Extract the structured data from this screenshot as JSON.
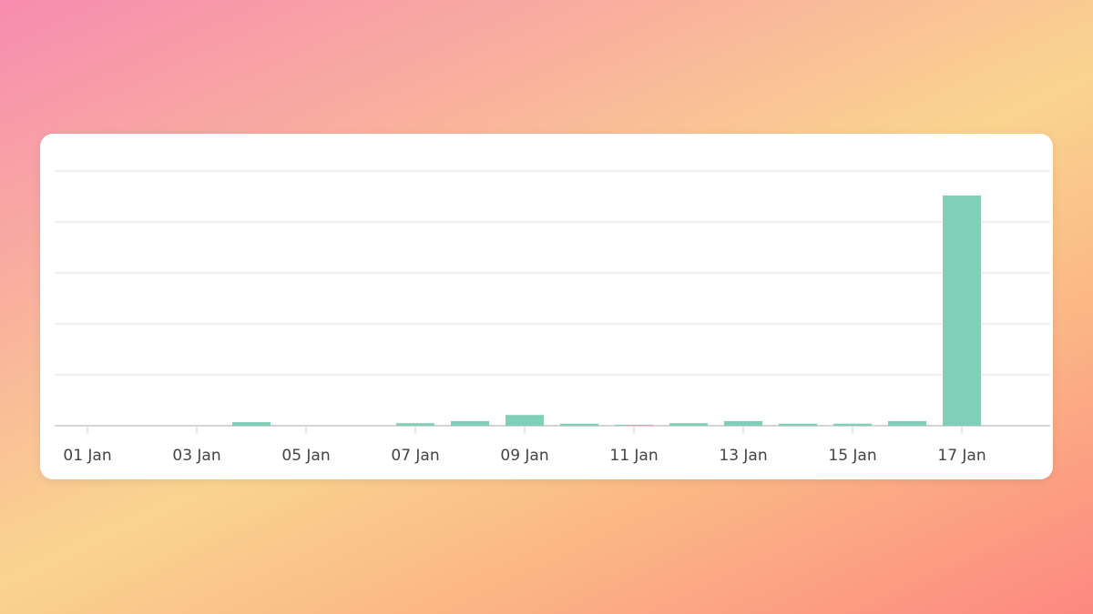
{
  "chart_data": {
    "type": "bar",
    "categories": [
      "01 Jan",
      null,
      "03 Jan",
      null,
      "05 Jan",
      null,
      "07 Jan",
      null,
      "09 Jan",
      null,
      "11 Jan",
      null,
      "13 Jan",
      null,
      "15 Jan",
      null,
      "17 Jan",
      null
    ],
    "values": [
      0,
      0,
      0,
      0.07,
      0,
      0,
      0.05,
      0.09,
      0.21,
      0.04,
      0.02,
      0.05,
      0.09,
      0.04,
      0.04,
      0.09,
      4.52,
      0
    ],
    "color": "#80cfb8",
    "ylim": [
      0,
      5
    ],
    "yticks": [
      0,
      1,
      2,
      3,
      4,
      5
    ],
    "grid": true
  }
}
